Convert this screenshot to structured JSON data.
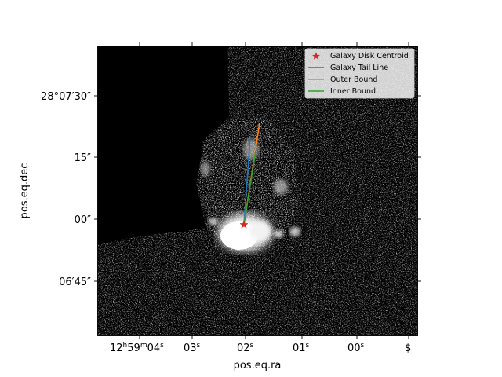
{
  "chart_data": {
    "type": "scatter",
    "xlabel": "pos.eq.ra",
    "ylabel": "pos.eq.dec",
    "grid": false,
    "legend_placement": "top-right",
    "x_ticks": [
      {
        "hours": 12,
        "minutes": 59,
        "seconds": "04",
        "label": "12h59m04s"
      },
      {
        "seconds": "03",
        "label": "03s"
      },
      {
        "seconds": "02",
        "label": "02s"
      },
      {
        "seconds": "01",
        "label": "01s"
      },
      {
        "seconds": "00",
        "label": "00s"
      },
      {
        "label": "$"
      }
    ],
    "y_ticks": [
      {
        "deg": 28,
        "arcmin": "07",
        "arcsec": "30",
        "label": "28°07′30″"
      },
      {
        "arcsec": "15",
        "label": "15″"
      },
      {
        "arcsec": "00",
        "label": "00″"
      },
      {
        "arcmin": "06",
        "arcsec": "45",
        "label": "06′45″"
      }
    ],
    "legend": [
      {
        "name": "Galaxy Disk Centroid",
        "color": "#d62728",
        "marker": "star"
      },
      {
        "name": "Galaxy Tail Line",
        "color": "#1f77b4",
        "marker": "line"
      },
      {
        "name": "Outer Bound",
        "color": "#ff7f0e",
        "marker": "line"
      },
      {
        "name": "Inner Bound",
        "color": "#2ca02c",
        "marker": "line"
      }
    ],
    "colors": {
      "background_image": "#000000",
      "centroid": "#d62728",
      "tail": "#1f77b4",
      "outer": "#ff7f0e",
      "inner": "#2ca02c"
    }
  }
}
